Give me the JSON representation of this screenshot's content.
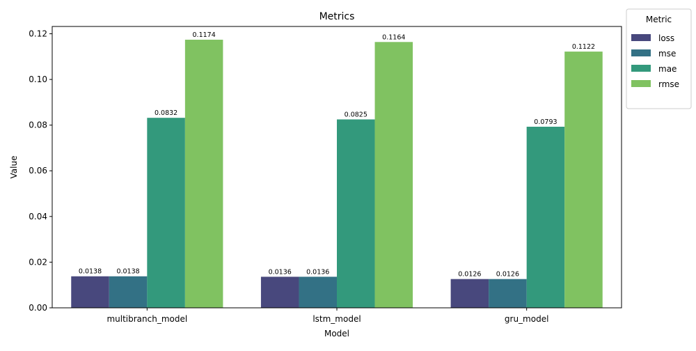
{
  "chart_data": {
    "type": "bar",
    "title": "Metrics",
    "xlabel": "Model",
    "ylabel": "Value",
    "categories": [
      "multibranch_model",
      "lstm_model",
      "gru_model"
    ],
    "series": [
      {
        "name": "loss",
        "color": "#48487d",
        "values": [
          0.0138,
          0.0136,
          0.0126
        ],
        "labels": [
          "0.0138",
          "0.0136",
          "0.0126"
        ]
      },
      {
        "name": "mse",
        "color": "#337185",
        "values": [
          0.0138,
          0.0136,
          0.0126
        ],
        "labels": [
          "0.0138",
          "0.0136",
          "0.0126"
        ]
      },
      {
        "name": "mae",
        "color": "#33997c",
        "values": [
          0.0832,
          0.0825,
          0.0793
        ],
        "labels": [
          "0.0832",
          "0.0825",
          "0.0793"
        ]
      },
      {
        "name": "rmse",
        "color": "#80c261",
        "values": [
          0.1174,
          0.1164,
          0.1122
        ],
        "labels": [
          "0.1174",
          "0.1164",
          "0.1122"
        ]
      }
    ],
    "ylim": [
      0,
      0.1232
    ],
    "yticks": [
      0.0,
      0.02,
      0.04,
      0.06,
      0.08,
      0.1,
      0.12
    ],
    "ytick_labels": [
      "0.00",
      "0.02",
      "0.04",
      "0.06",
      "0.08",
      "0.10",
      "0.12"
    ],
    "grid": false,
    "legend": {
      "title": "Metric",
      "placement": "outside-upper-right"
    }
  }
}
